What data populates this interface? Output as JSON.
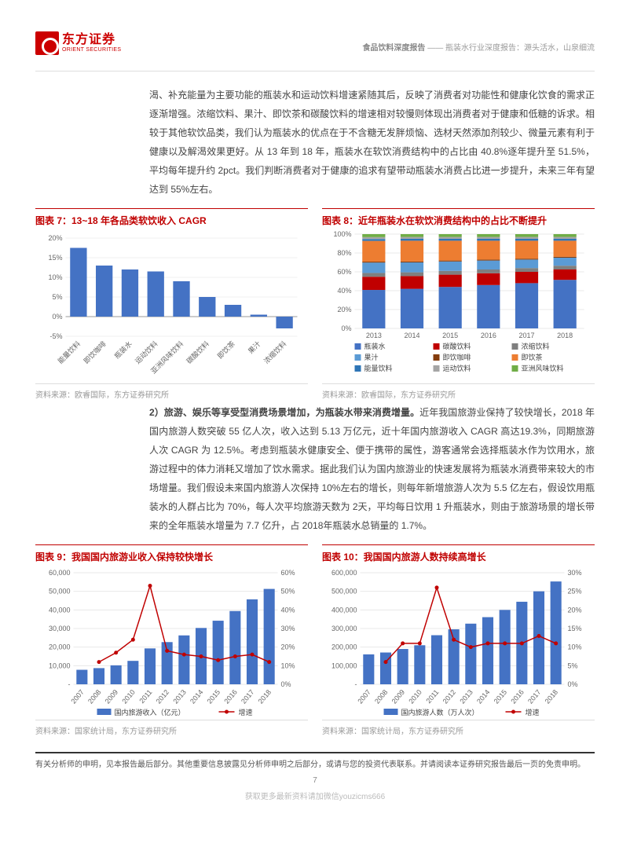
{
  "header": {
    "logo_cn": "东方证券",
    "logo_en": "ORIENT SECURITIES",
    "category": "食品饮料深度报告",
    "title": "瓶装水行业深度报告：源头活水，山泉细流"
  },
  "para1": "渴、补充能量为主要功能的瓶装水和运动饮料增速紧随其后，反映了消费者对功能性和健康化饮食的需求正逐渐增强。浓缩饮料、果汁、即饮茶和碳酸饮料的增速相对较慢则体现出消费者对于健康和低糖的诉求。相较于其他软饮品类，我们认为瓶装水的优点在于不含糖无发胖烦恼、选材天然添加剂较少、微量元素有利于健康以及解渴效果更好。从 13 年到 18 年，瓶装水在软饮消费结构中的占比由 40.8%逐年提升至 51.5%，平均每年提升约 2pct。我们判断消费者对于健康的追求有望带动瓶装水消费占比进一步提升，未来三年有望达到 55%左右。",
  "para2_head": "2）旅游、娱乐等享受型消费场景增加，为瓶装水带来消费增量。",
  "para2": "近年我国旅游业保持了较快增长，2018 年国内旅游人数突破 55 亿人次，收入达到 5.13 万亿元，近十年国内旅游收入 CAGR 高达19.3%，同期旅游人次 CAGR 为 12.5%。考虑到瓶装水健康安全、便于携带的属性，游客通常会选择瓶装水作为饮用水，旅游过程中的体力消耗又增加了饮水需求。据此我们认为国内旅游业的快速发展将为瓶装水消费带来较大的市场增量。我们假设未来国内旅游人次保持 10%左右的增长，则每年新增旅游人次为 5.5 亿左右，假设饮用瓶装水的人群占比为 70%，每人次平均旅游天数为 2天，平均每日饮用 1 升瓶装水，则由于旅游场景的增长带来的全年瓶装水增量为 7.7 亿升，占 2018年瓶装水总销量的 1.7%。",
  "chart7": {
    "title": "图表 7：13~18 年各品类软饮收入 CAGR",
    "source": "资料来源：欧睿国际，东方证券研究所",
    "categories": [
      "能量饮料",
      "即饮咖啡",
      "瓶装水",
      "运动饮料",
      "亚洲风味饮料",
      "碳酸饮料",
      "即饮茶",
      "果汁",
      "浓缩饮料"
    ],
    "values": [
      17.5,
      13,
      12,
      11.5,
      9,
      5,
      3,
      0.5,
      -3
    ],
    "ymin": -5,
    "ymax": 20,
    "ystep": 5,
    "bar_color": "#4472c4",
    "grid_color": "#e0e0e0"
  },
  "chart8": {
    "title": "图表 8：近年瓶装水在软饮消费结构中的占比不断提升",
    "source": "资料来源：欧睿国际，东方证券研究所",
    "years": [
      "2013",
      "2014",
      "2015",
      "2016",
      "2017",
      "2018"
    ],
    "series": [
      {
        "name": "瓶装水",
        "color": "#4472c4",
        "vals": [
          40.8,
          42,
          44,
          46,
          48,
          51.5
        ]
      },
      {
        "name": "碳酸饮料",
        "color": "#c00000",
        "vals": [
          14,
          13.5,
          13,
          12.5,
          12,
          11
        ]
      },
      {
        "name": "浓缩饮料",
        "color": "#7f7f7f",
        "vals": [
          4,
          4,
          4,
          4,
          4,
          4
        ]
      },
      {
        "name": "果汁",
        "color": "#5b9bd5",
        "vals": [
          11,
          10.5,
          10,
          9.5,
          9,
          8.5
        ]
      },
      {
        "name": "即饮咖啡",
        "color": "#843c0c",
        "vals": [
          1,
          1,
          1,
          1,
          1,
          1
        ]
      },
      {
        "name": "即饮茶",
        "color": "#ed7d31",
        "vals": [
          22,
          22,
          21,
          20,
          19,
          17
        ]
      },
      {
        "name": "能量饮料",
        "color": "#2e75b6",
        "vals": [
          2,
          2,
          2,
          2,
          2,
          2
        ]
      },
      {
        "name": "运动饮料",
        "color": "#a5a5a5",
        "vals": [
          2,
          2,
          2,
          2,
          2,
          2
        ]
      },
      {
        "name": "亚洲风味饮料",
        "color": "#70ad47",
        "vals": [
          3.2,
          3,
          3,
          3,
          3,
          3
        ]
      }
    ],
    "legend_items": [
      "瓶装水",
      "碳酸饮料",
      "浓缩饮料",
      "果汁",
      "即饮咖啡",
      "即饮茶",
      "能量饮料",
      "运动饮料",
      "亚洲风味饮料"
    ],
    "yticks": [
      "0%",
      "20%",
      "40%",
      "60%",
      "80%",
      "100%"
    ]
  },
  "chart9": {
    "title": "图表 9：我国国内旅游业收入保持较快增长",
    "source": "资料来源：国家统计局，东方证券研究所",
    "years": [
      "2007",
      "2008",
      "2009",
      "2010",
      "2011",
      "2012",
      "2013",
      "2014",
      "2015",
      "2016",
      "2017",
      "2018"
    ],
    "bars": [
      7800,
      8700,
      10200,
      12600,
      19300,
      22700,
      26300,
      30300,
      34200,
      39400,
      45700,
      51300
    ],
    "line": [
      0,
      12,
      17,
      24,
      53,
      18,
      16,
      15,
      13,
      15,
      16,
      12
    ],
    "y1_ticks": [
      0,
      10000,
      20000,
      30000,
      40000,
      50000,
      60000
    ],
    "y1_labels": [
      "-",
      "10,000",
      "20,000",
      "30,000",
      "40,000",
      "50,000",
      "60,000"
    ],
    "y2_ticks": [
      0,
      10,
      20,
      30,
      40,
      50,
      60
    ],
    "legend_bar": "国内旅游收入（亿元）",
    "legend_line": "增速",
    "bar_color": "#4472c4",
    "line_color": "#c00000"
  },
  "chart10": {
    "title": "图表 10：我国国内旅游人数持续高增长",
    "source": "资料来源：国家统计局，东方证券研究所",
    "years": [
      "2007",
      "2008",
      "2009",
      "2010",
      "2011",
      "2012",
      "2013",
      "2014",
      "2015",
      "2016",
      "2017",
      "2018"
    ],
    "bars": [
      161000,
      171000,
      190000,
      210000,
      264000,
      295700,
      326200,
      361100,
      400000,
      444000,
      500000,
      553000
    ],
    "line": [
      0,
      6,
      11,
      11,
      26,
      12,
      10,
      11,
      11,
      11,
      13,
      11
    ],
    "y1_ticks": [
      0,
      100000,
      200000,
      300000,
      400000,
      500000,
      600000
    ],
    "y1_labels": [
      "-",
      "100,000",
      "200,000",
      "300,000",
      "400,000",
      "500,000",
      "600,000"
    ],
    "y2_ticks": [
      0,
      5,
      10,
      15,
      20,
      25,
      30
    ],
    "legend_bar": "国内旅游人数（万人次）",
    "legend_line": "增速",
    "bar_color": "#4472c4",
    "line_color": "#c00000"
  },
  "footer": "有关分析师的申明，见本报告最后部分。其他重要信息披露见分析师申明之后部分，或请与您的投资代表联系。并请阅读本证券研究报告最后一页的免责申明。",
  "page_num": "7",
  "watermark": "获取更多最新资料请加微信youzicms666"
}
